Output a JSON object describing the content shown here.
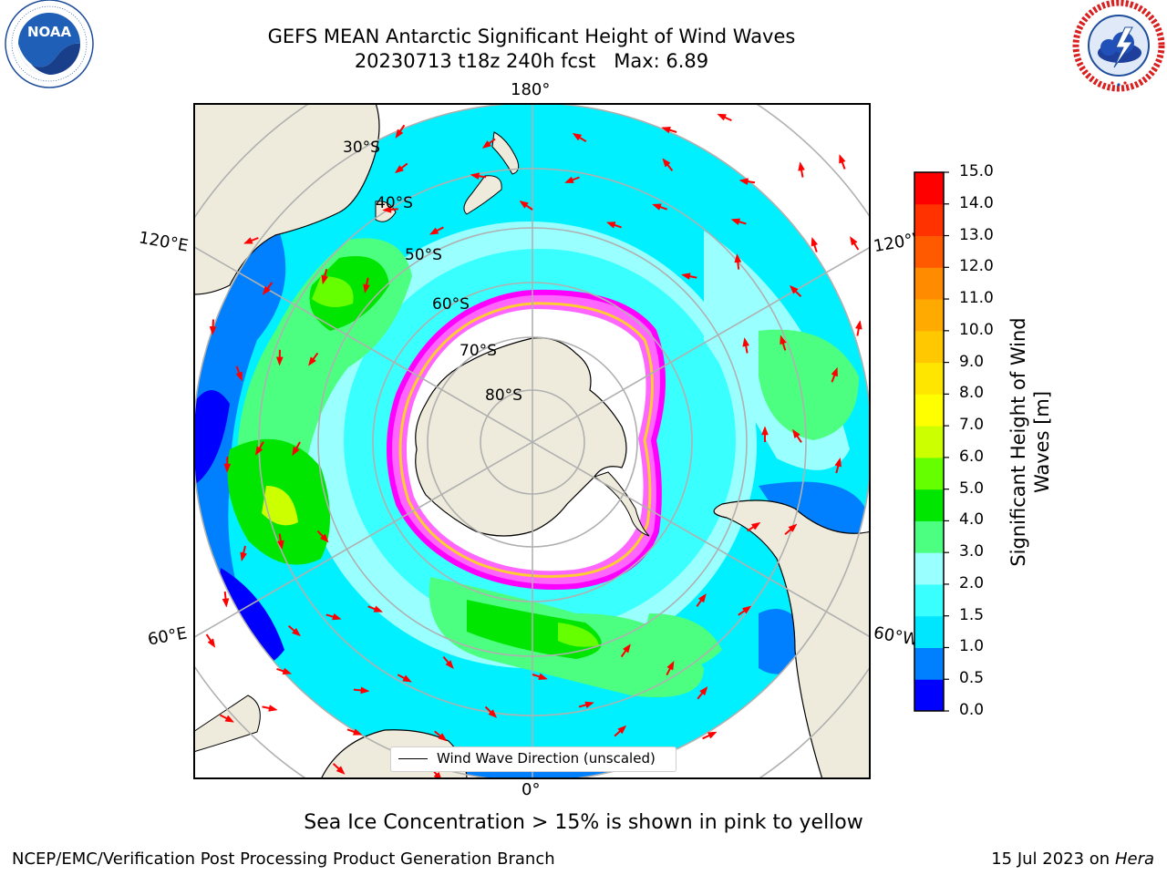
{
  "header": {
    "title_line1": "GEFS MEAN Antarctic Significant Height of Wind Waves",
    "title_line2": "20230713 t18z 240h fcst   Max: 6.89"
  },
  "logos": {
    "left": {
      "name": "noaa-logo",
      "text": "NOAA",
      "ring_text": "NATIONAL OCEANIC AND ATMOSPHERIC ADMINISTRATION · U.S. DEPARTMENT OF COMMERCE"
    },
    "right": {
      "name": "nws-logo",
      "ring_text": "NATIONAL WEATHER SERVICE"
    }
  },
  "map": {
    "projection": "south-polar-stereographic",
    "longitude_labels": {
      "top": "180°",
      "bottom": "0°",
      "upper_left": "120°E",
      "lower_left": "60°E",
      "upper_right": "120°W",
      "lower_right": "60°W"
    },
    "latitude_labels": [
      "30°S",
      "40°S",
      "50°S",
      "60°S",
      "70°S",
      "80°S"
    ],
    "legend_text": "Wind Wave Direction (unscaled)",
    "ocean_color": "#00ffff",
    "land_color": "#eeebdc",
    "ice_colors": [
      "#ff66ff",
      "#ffcc33",
      "#ff00ff"
    ],
    "arrow_color": "#ff0000"
  },
  "colorbar": {
    "label_line1": "Significant Height of Wind",
    "label_line2": "Waves [m]",
    "ticks": [
      "0.0",
      "0.5",
      "1.0",
      "1.5",
      "2.0",
      "3.0",
      "4.0",
      "5.0",
      "6.0",
      "7.0",
      "8.0",
      "9.0",
      "10.0",
      "11.0",
      "12.0",
      "13.0",
      "14.0",
      "15.0"
    ],
    "colors": [
      "#0000ff",
      "#0080ff",
      "#00e6ff",
      "#39ffff",
      "#99ffff",
      "#4dff80",
      "#00e600",
      "#66ff00",
      "#ccff00",
      "#ffff00",
      "#ffe600",
      "#ffc800",
      "#ffaa00",
      "#ff8c00",
      "#ff5a00",
      "#ff3200",
      "#ff0000"
    ]
  },
  "caption": "Sea Ice Concentration > 15% is shown in pink to yellow",
  "footer": {
    "left": "NCEP/EMC/Verification Post Processing Product Generation Branch",
    "right_date": "15 Jul 2023 on ",
    "right_host": "Hera"
  }
}
